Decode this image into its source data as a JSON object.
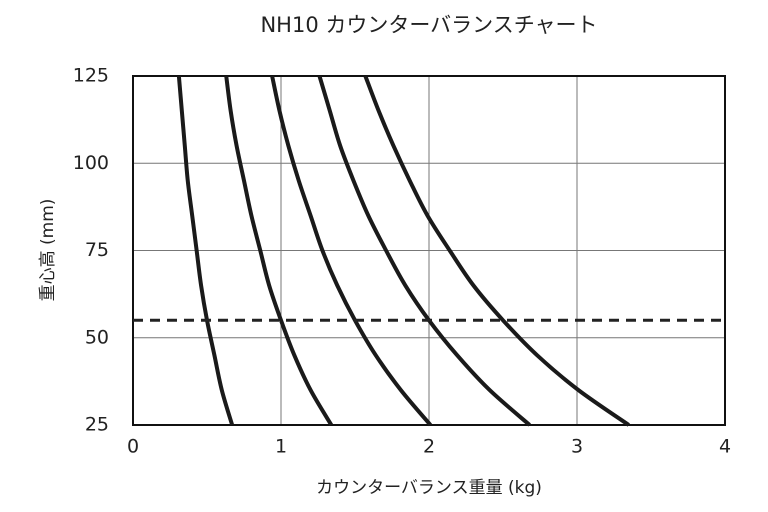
{
  "chart_data": {
    "type": "line",
    "title": "NH10 カウンターバランスチャート",
    "xlabel": "カウンターバランス重量 (kg)",
    "ylabel": "重心高 (mm)",
    "xlim": [
      0,
      4
    ],
    "ylim": [
      25,
      125
    ],
    "xticks": [
      0,
      1,
      2,
      3,
      4
    ],
    "yticks": [
      25,
      50,
      75,
      100,
      125
    ],
    "grid": true,
    "reference_line": {
      "value": 55,
      "style": "dashed",
      "color": "#222222"
    },
    "y": [
      125,
      115,
      105,
      95,
      85,
      75,
      65,
      55,
      45,
      35,
      25
    ],
    "series": [
      {
        "color": "#1a1a1a",
        "x": [
          0.31,
          0.33,
          0.35,
          0.37,
          0.4,
          0.43,
          0.46,
          0.5,
          0.55,
          0.6,
          0.67
        ]
      },
      {
        "color": "#1a1a1a",
        "x": [
          0.63,
          0.66,
          0.7,
          0.75,
          0.8,
          0.86,
          0.92,
          1.0,
          1.09,
          1.2,
          1.34
        ]
      },
      {
        "color": "#1a1a1a",
        "x": [
          0.94,
          0.99,
          1.05,
          1.12,
          1.2,
          1.28,
          1.38,
          1.5,
          1.64,
          1.81,
          2.01
        ]
      },
      {
        "color": "#1a1a1a",
        "x": [
          1.26,
          1.33,
          1.4,
          1.49,
          1.59,
          1.71,
          1.84,
          2.0,
          2.19,
          2.41,
          2.68
        ]
      },
      {
        "color": "#1a1a1a",
        "x": [
          1.57,
          1.66,
          1.76,
          1.87,
          1.99,
          2.14,
          2.3,
          2.5,
          2.73,
          3.01,
          3.35
        ]
      }
    ]
  }
}
